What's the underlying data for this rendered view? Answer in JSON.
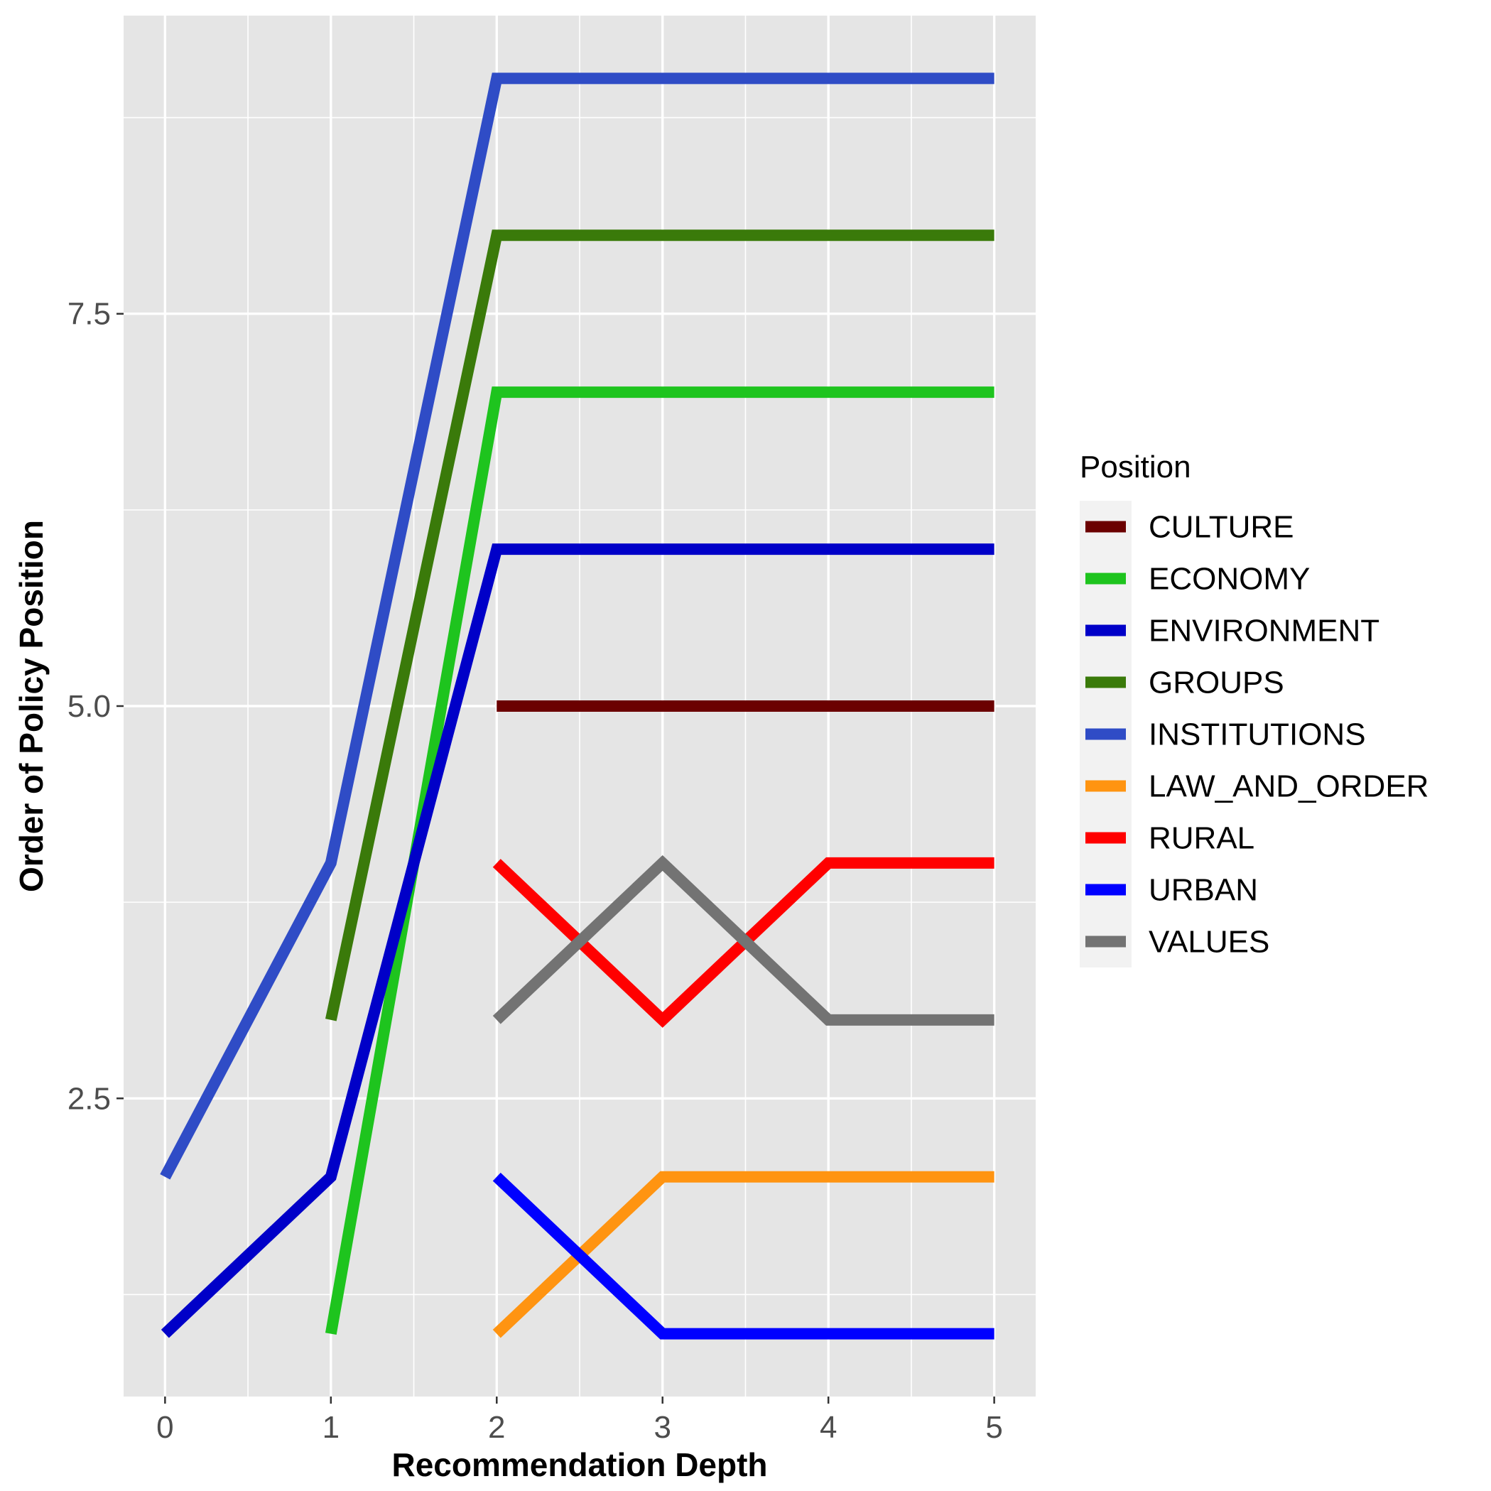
{
  "chart_data": {
    "type": "line",
    "xlabel": "Recommendation Depth",
    "ylabel": "Order of Policy Position",
    "xlim": [
      -0.25,
      5.25
    ],
    "ylim": [
      0.6,
      9.4
    ],
    "x_ticks": [
      0,
      1,
      2,
      3,
      4,
      5
    ],
    "y_ticks": [
      2.5,
      5.0,
      7.5
    ],
    "y_tick_labels": [
      "2.5",
      "5.0",
      "7.5"
    ],
    "grid": true,
    "legend": {
      "title": "Position",
      "placement": "right"
    },
    "series": [
      {
        "name": "CULTURE",
        "color": "#6B0000",
        "points": [
          [
            2,
            5
          ],
          [
            3,
            5
          ],
          [
            4,
            5
          ],
          [
            5,
            5
          ]
        ]
      },
      {
        "name": "ECONOMY",
        "color": "#1EC41E",
        "points": [
          [
            1,
            1
          ],
          [
            2,
            7
          ],
          [
            3,
            7
          ],
          [
            4,
            7
          ],
          [
            5,
            7
          ]
        ]
      },
      {
        "name": "ENVIRONMENT",
        "color": "#0000C8",
        "points": [
          [
            0,
            1
          ],
          [
            1,
            2
          ],
          [
            2,
            6
          ],
          [
            3,
            6
          ],
          [
            4,
            6
          ],
          [
            5,
            6
          ]
        ]
      },
      {
        "name": "GROUPS",
        "color": "#3A7A0A",
        "points": [
          [
            1,
            3
          ],
          [
            2,
            8
          ],
          [
            3,
            8
          ],
          [
            4,
            8
          ],
          [
            5,
            8
          ]
        ]
      },
      {
        "name": "INSTITUTIONS",
        "color": "#2F4CC6",
        "points": [
          [
            0,
            2
          ],
          [
            1,
            4
          ],
          [
            2,
            9
          ],
          [
            3,
            9
          ],
          [
            4,
            9
          ],
          [
            5,
            9
          ]
        ]
      },
      {
        "name": "LAW_AND_ORDER",
        "color": "#FF9411",
        "points": [
          [
            2,
            1
          ],
          [
            3,
            2
          ],
          [
            4,
            2
          ],
          [
            5,
            2
          ]
        ]
      },
      {
        "name": "RURAL",
        "color": "#FF0000",
        "points": [
          [
            2,
            4
          ],
          [
            3,
            3
          ],
          [
            4,
            4
          ],
          [
            5,
            4
          ]
        ]
      },
      {
        "name": "URBAN",
        "color": "#0000FF",
        "points": [
          [
            2,
            2
          ],
          [
            3,
            1
          ],
          [
            4,
            1
          ],
          [
            5,
            1
          ]
        ]
      },
      {
        "name": "VALUES",
        "color": "#737373",
        "points": [
          [
            2,
            3
          ],
          [
            3,
            4
          ],
          [
            4,
            3
          ],
          [
            5,
            3
          ]
        ]
      }
    ]
  }
}
